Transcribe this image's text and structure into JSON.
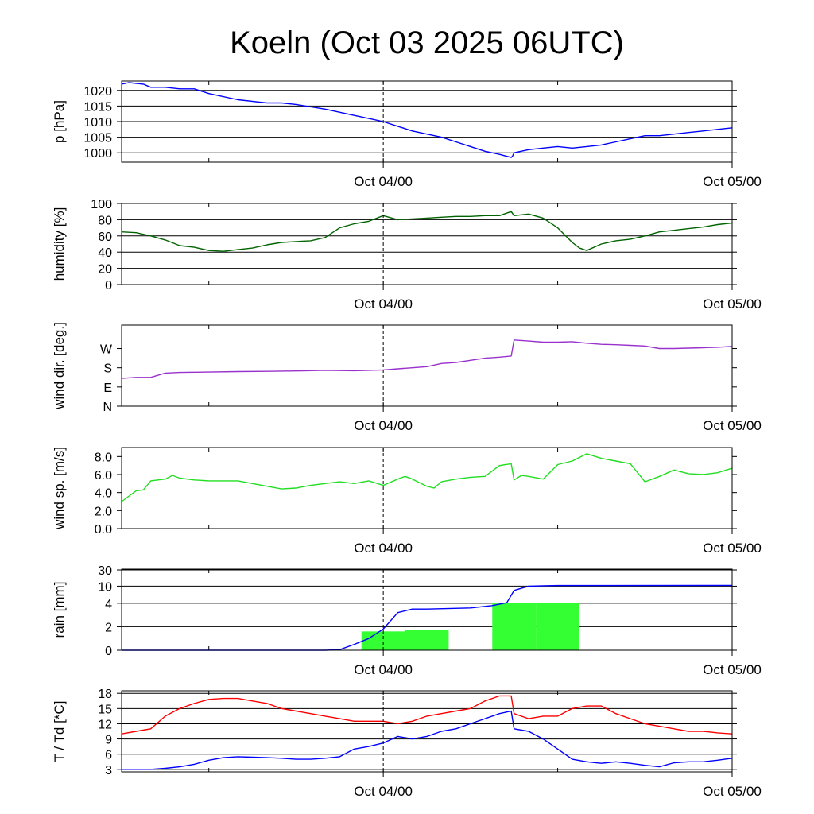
{
  "title": "Koeln (Oct 03 2025 06UTC)",
  "x_axis": {
    "range_hours": [
      0,
      42
    ],
    "minor_tick_hours": [
      6,
      18,
      30
    ],
    "marker_hour": 18,
    "labels": [
      {
        "text": "Oct 04/00",
        "hour": 18
      },
      {
        "text": "Oct 05/00",
        "hour": 42
      }
    ]
  },
  "chart_data": [
    {
      "type": "line",
      "id": "pressure",
      "ylabel": "p [hPa]",
      "ylim": [
        997,
        1023
      ],
      "yticks": [
        1000,
        1005,
        1010,
        1015,
        1020
      ],
      "ytick_labels": [
        "1000",
        "1005",
        "1010",
        "1015",
        "1020"
      ],
      "grid": true,
      "series": [
        {
          "name": "pressure",
          "color": "#0000ff",
          "x": [
            0,
            0.5,
            1.5,
            2,
            3,
            4,
            5,
            6,
            8,
            10,
            11,
            12,
            14,
            16,
            17,
            18,
            19,
            20,
            21,
            22,
            23,
            24,
            25,
            26,
            26.8,
            26.9,
            27,
            28,
            29,
            30,
            31,
            32,
            33,
            34,
            35,
            36,
            37,
            38,
            39,
            40,
            41,
            42
          ],
          "y": [
            1022,
            1022.5,
            1022,
            1021,
            1021,
            1020.5,
            1020.5,
            1019,
            1017,
            1016,
            1016,
            1015.5,
            1014,
            1012,
            1011,
            1010,
            1008.5,
            1007,
            1006,
            1005,
            1003.5,
            1002,
            1000.5,
            999.5,
            998.5,
            999,
            1000,
            1001,
            1001.5,
            1002,
            1001.5,
            1002,
            1002.5,
            1003.5,
            1004.5,
            1005.5,
            1005.5,
            1006,
            1006.5,
            1007,
            1007.5,
            1008
          ]
        }
      ]
    },
    {
      "type": "line",
      "id": "humidity",
      "ylabel": "humidity [%]",
      "ylim": [
        0,
        100
      ],
      "yticks": [
        0,
        20,
        40,
        60,
        80,
        100
      ],
      "ytick_labels": [
        "0",
        "20",
        "40",
        "60",
        "80",
        "100"
      ],
      "grid": true,
      "series": [
        {
          "name": "humidity",
          "color": "#006400",
          "x": [
            0,
            1,
            2,
            3,
            4,
            5,
            6,
            7,
            8,
            9,
            10,
            11,
            12,
            13,
            14,
            15,
            16,
            17,
            18,
            19,
            20,
            21,
            22,
            23,
            24,
            25,
            26,
            26.8,
            27,
            28,
            29,
            30,
            31,
            31.5,
            32,
            33,
            34,
            35,
            36,
            37,
            38,
            39,
            40,
            41,
            42
          ],
          "y": [
            65,
            64,
            60,
            55,
            48,
            46,
            42,
            41,
            43,
            45,
            49,
            52,
            53,
            54,
            58,
            70,
            75,
            78,
            85,
            80,
            81,
            82,
            83,
            84,
            84,
            85,
            85,
            90,
            85,
            87,
            82,
            70,
            52,
            45,
            42,
            50,
            54,
            56,
            60,
            65,
            67,
            69,
            71,
            74,
            76
          ]
        }
      ]
    },
    {
      "type": "line",
      "id": "wind_direction",
      "ylabel": "wind dir. [deg.]",
      "ylim": [
        0,
        380
      ],
      "yticks": [
        0,
        90,
        180,
        270
      ],
      "ytick_labels": [
        "N",
        "E",
        "S",
        "W"
      ],
      "grid": false,
      "series": [
        {
          "name": "wind direction",
          "color": "#9932cc",
          "x": [
            0,
            1,
            2,
            3,
            4,
            6,
            8,
            10,
            12,
            14,
            16,
            18,
            19,
            20,
            21,
            22,
            23,
            24,
            25,
            26,
            26.8,
            27,
            28,
            29,
            30,
            31,
            32,
            33,
            34,
            35,
            36,
            37,
            38,
            39,
            40,
            41,
            42
          ],
          "y": [
            130,
            135,
            135,
            155,
            158,
            160,
            162,
            163,
            165,
            168,
            166,
            170,
            175,
            180,
            185,
            200,
            205,
            215,
            225,
            230,
            235,
            310,
            305,
            300,
            300,
            302,
            295,
            290,
            288,
            285,
            282,
            270,
            270,
            272,
            274,
            276,
            280
          ]
        }
      ]
    },
    {
      "type": "line",
      "id": "wind_speed",
      "ylabel": "wind sp. [m/s]",
      "ylim": [
        0,
        9
      ],
      "yticks": [
        0,
        2,
        4,
        6,
        8
      ],
      "ytick_labels": [
        "0.0",
        "2.0",
        "4.0",
        "6.0",
        "8.0"
      ],
      "grid": false,
      "series": [
        {
          "name": "wind speed",
          "color": "#22dd22",
          "x": [
            0,
            1,
            1.5,
            2,
            3,
            3.5,
            4,
            5,
            6,
            7,
            8,
            9,
            10,
            11,
            12,
            13,
            14,
            15,
            16,
            17,
            18,
            19,
            19.5,
            20,
            21,
            21.5,
            22,
            23,
            24,
            25,
            26,
            26.8,
            27,
            27.5,
            28,
            29,
            30,
            31,
            32,
            33,
            34,
            35,
            36,
            37,
            38,
            39,
            40,
            41,
            42
          ],
          "y": [
            3.0,
            4.2,
            4.3,
            5.3,
            5.5,
            5.9,
            5.6,
            5.4,
            5.3,
            5.3,
            5.3,
            5.0,
            4.7,
            4.4,
            4.5,
            4.8,
            5.0,
            5.2,
            5.0,
            5.3,
            4.8,
            5.5,
            5.8,
            5.5,
            4.7,
            4.5,
            5.2,
            5.5,
            5.7,
            5.8,
            7.0,
            7.2,
            5.4,
            5.9,
            5.8,
            5.5,
            7.1,
            7.5,
            8.3,
            7.8,
            7.5,
            7.2,
            5.2,
            5.8,
            6.5,
            6.1,
            6.0,
            6.2,
            6.7
          ]
        }
      ]
    },
    {
      "type": "bar_line",
      "id": "rain",
      "ylabel": "rain [mm]",
      "ylim": [
        0,
        32
      ],
      "yticks": [
        0,
        2,
        4,
        10,
        30
      ],
      "ytick_labels": [
        "0",
        "2",
        "4",
        "10",
        "30"
      ],
      "scale": "piecewise",
      "grid": true,
      "bars": {
        "name": "rain per 3h",
        "color": "#33ff33",
        "x_start": [
          16.5,
          19.5,
          25.5,
          28.5
        ],
        "x_end": [
          19.5,
          22.5,
          28.5,
          31.5
        ],
        "values": [
          1.6,
          1.7,
          4.1,
          4.1
        ]
      },
      "series": [
        {
          "name": "accumulated rain",
          "color": "#0000ff",
          "x": [
            0,
            14,
            15,
            16,
            17,
            18,
            19,
            20,
            21,
            24,
            25.5,
            26.5,
            27,
            28,
            29,
            30,
            42
          ],
          "y": [
            0,
            0,
            0.05,
            0.5,
            1.0,
            1.8,
            3.2,
            3.5,
            3.5,
            3.6,
            3.8,
            4.2,
            8.5,
            10.0,
            10.5,
            10.8,
            11.0
          ]
        }
      ]
    },
    {
      "type": "line",
      "id": "temperature",
      "ylabel": "T / Td [*C]",
      "ylim": [
        2.5,
        18.5
      ],
      "yticks": [
        3,
        6,
        9,
        12,
        15,
        18
      ],
      "ytick_labels": [
        "3",
        "6",
        "9",
        "12",
        "15",
        "18"
      ],
      "grid": true,
      "series": [
        {
          "name": "T",
          "color": "#ff0000",
          "x": [
            0,
            1,
            2,
            3,
            4,
            5,
            6,
            7,
            8,
            9,
            10,
            11,
            12,
            13,
            14,
            15,
            16,
            17,
            18,
            19,
            20,
            21,
            22,
            23,
            24,
            25,
            26,
            26.8,
            27,
            28,
            29,
            30,
            31,
            32,
            33,
            34,
            35,
            36,
            37,
            38,
            39,
            40,
            41,
            42
          ],
          "y": [
            10,
            10.5,
            11,
            13.5,
            15,
            16,
            16.8,
            17,
            17,
            16.5,
            16,
            15,
            14.5,
            14,
            13.5,
            13,
            12.5,
            12.5,
            12.5,
            12,
            12.5,
            13.5,
            14,
            14.5,
            15,
            16.5,
            17.5,
            17.5,
            14,
            13,
            13.5,
            13.5,
            15,
            15.5,
            15.5,
            14,
            13,
            12,
            11.5,
            11,
            10.5,
            10.5,
            10.2,
            10
          ]
        }
      ]
    },
    {
      "type": "line",
      "id": "dewpoint",
      "series_of": "temperature",
      "series": [
        {
          "name": "Td",
          "color": "#0000ff",
          "x": [
            0,
            1,
            2,
            3,
            4,
            5,
            6,
            7,
            8,
            9,
            10,
            11,
            12,
            13,
            14,
            15,
            16,
            17,
            18,
            19,
            20,
            21,
            22,
            23,
            24,
            25,
            26,
            26.8,
            27,
            28,
            29,
            30,
            31,
            32,
            33,
            34,
            35,
            36,
            37,
            38,
            39,
            40,
            41,
            42
          ],
          "y": [
            3,
            3,
            3,
            3.2,
            3.5,
            4,
            4.8,
            5.3,
            5.5,
            5.4,
            5.3,
            5.2,
            5.0,
            5.0,
            5.2,
            5.5,
            7,
            7.5,
            8.2,
            9.5,
            9,
            9.5,
            10.5,
            11,
            12,
            13,
            14,
            14.5,
            11,
            10.5,
            9,
            7,
            5,
            4.5,
            4.2,
            4.5,
            4.2,
            3.8,
            3.5,
            4.3,
            4.5,
            4.5,
            4.8,
            5.2
          ]
        }
      ]
    }
  ]
}
